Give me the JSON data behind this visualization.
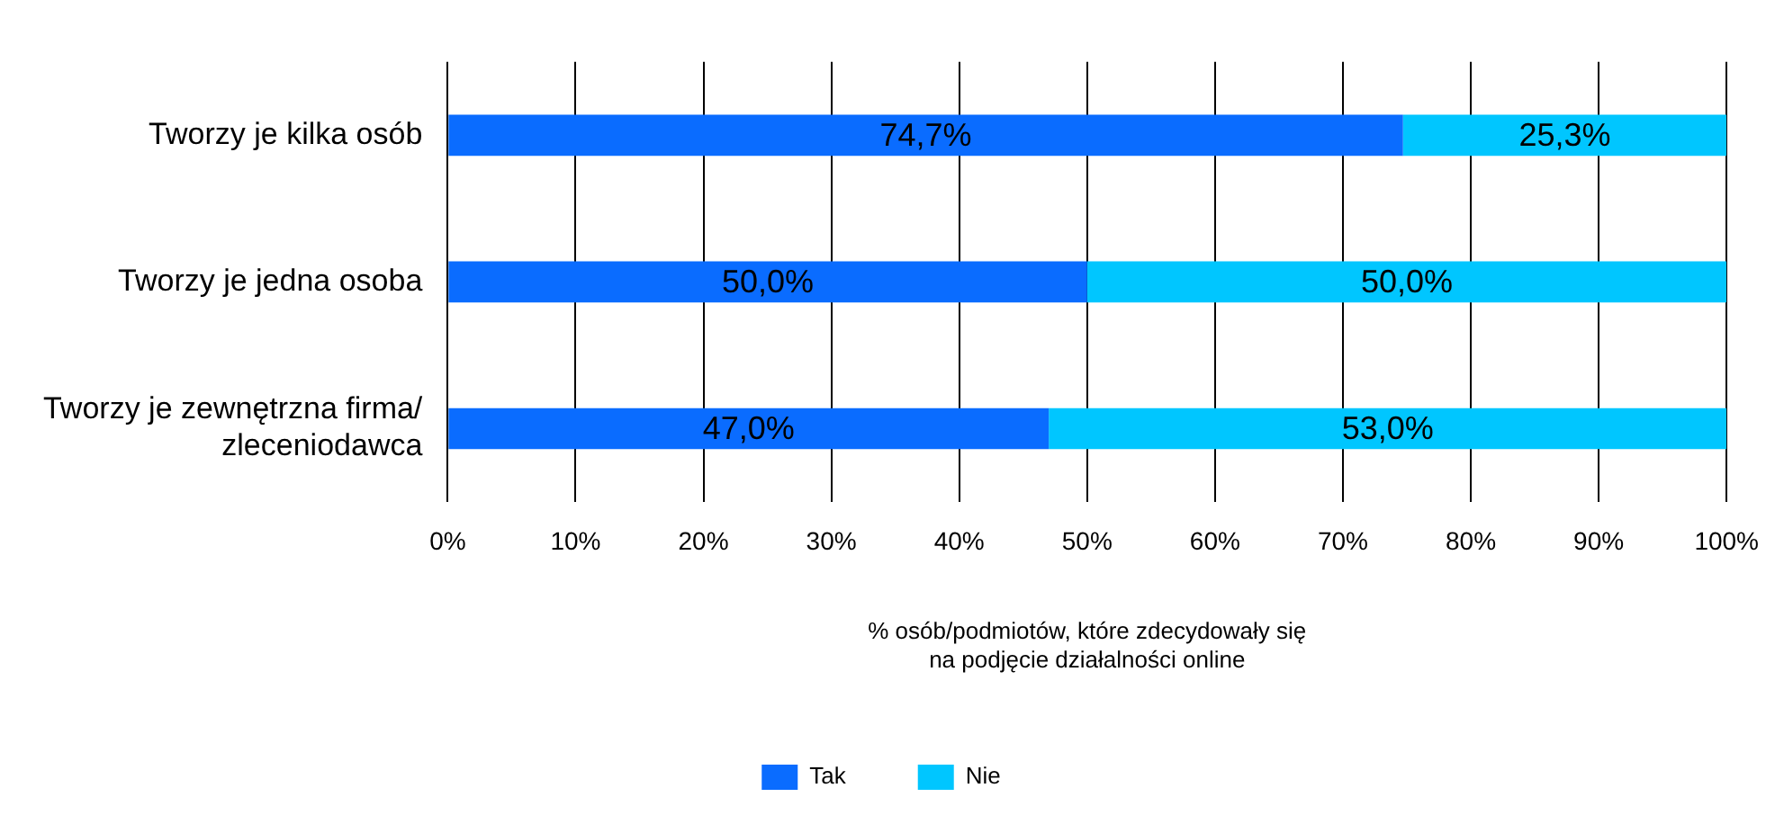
{
  "chart_data": {
    "type": "bar",
    "orientation": "horizontal",
    "stacked": true,
    "categories": [
      "Tworzy je kilka osób",
      "Tworzy je jedna osoba",
      "Tworzy je zewnętrzna firma/\nzleceniodawca"
    ],
    "series": [
      {
        "name": "Tak",
        "color": "#0a6cff",
        "values": [
          74.7,
          50.0,
          47.0
        ],
        "value_labels": [
          "74,7%",
          "50,0%",
          "47,0%"
        ]
      },
      {
        "name": "Nie",
        "color": "#00c6ff",
        "values": [
          25.3,
          50.0,
          53.0
        ],
        "value_labels": [
          "25,3%",
          "50,0%",
          "53,0%"
        ]
      }
    ],
    "xlabel": "% osób/podmiotów, które zdecydowały się\nna podjęcie działalności online",
    "xlim": [
      0,
      100
    ],
    "xticks": [
      {
        "value": 0,
        "label": "0%"
      },
      {
        "value": 10,
        "label": "10%"
      },
      {
        "value": 20,
        "label": "20%"
      },
      {
        "value": 30,
        "label": "30%"
      },
      {
        "value": 40,
        "label": "40%"
      },
      {
        "value": 50,
        "label": "50%"
      },
      {
        "value": 60,
        "label": "60%"
      },
      {
        "value": 70,
        "label": "70%"
      },
      {
        "value": 80,
        "label": "80%"
      },
      {
        "value": 90,
        "label": "90%"
      },
      {
        "value": 100,
        "label": "100%"
      }
    ],
    "grid": "x",
    "legend": "bottom"
  }
}
